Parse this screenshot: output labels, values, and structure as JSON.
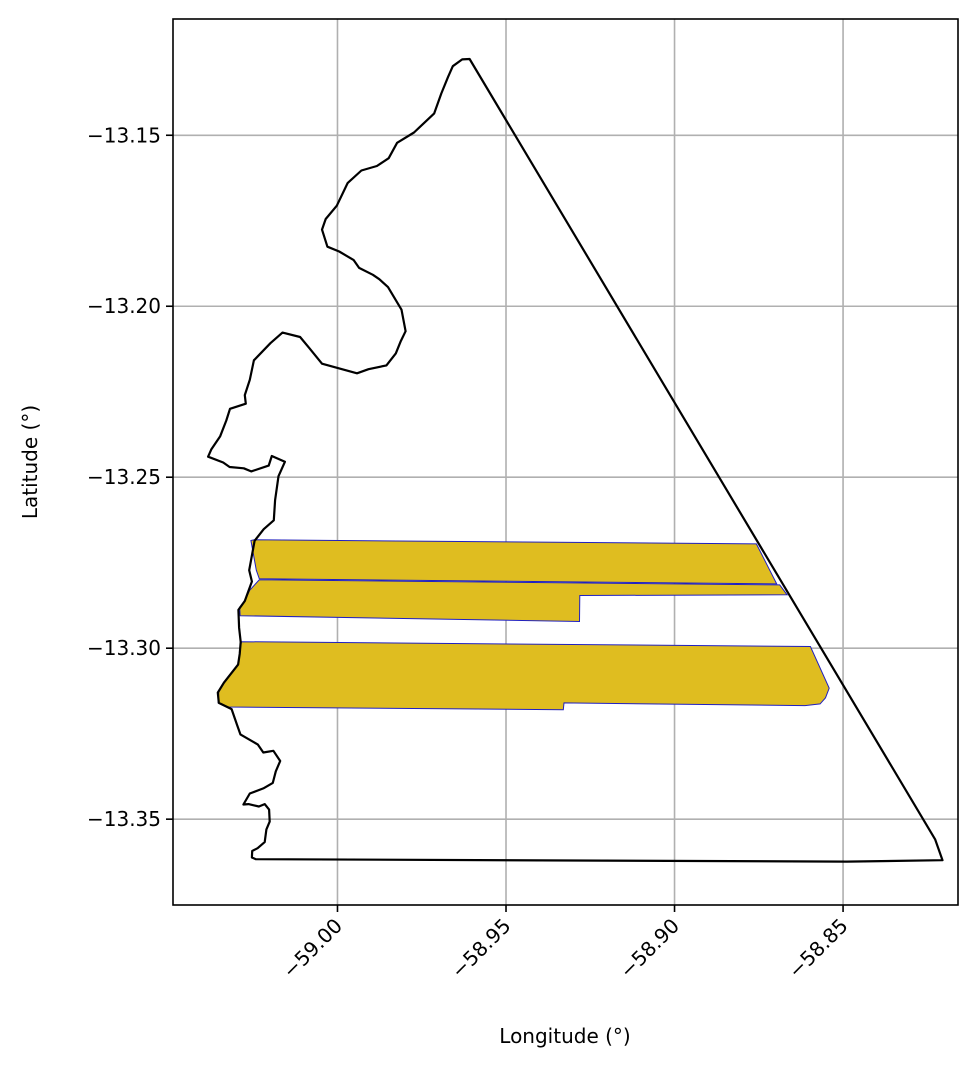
{
  "chart_data": {
    "type": "map",
    "xlabel": "Longitude (°)",
    "ylabel": "Latitude (°)",
    "xlim": [
      -59.0488,
      -58.8159
    ],
    "ylim": [
      -13.3751,
      -13.116
    ],
    "x_ticks": [
      -59.0,
      -58.95,
      -58.9,
      -58.85
    ],
    "x_tick_labels": [
      "−59.00",
      "−58.95",
      "−58.90",
      "−58.85"
    ],
    "y_ticks": [
      -13.15,
      -13.2,
      -13.25,
      -13.3,
      -13.35
    ],
    "y_tick_labels": [
      "−13.15",
      "−13.20",
      "−13.25",
      "−13.30",
      "−13.35"
    ],
    "grid": true,
    "colors": {
      "fill": "#dfbd20",
      "fill_edge": "#2020c0",
      "boundary": "#000000",
      "grid": "#b0b0b0"
    },
    "boundary": {
      "name": "",
      "coords": [
        [
          -58.9608,
          -13.1277
        ],
        [
          -58.8227,
          -13.3559
        ],
        [
          -58.8205,
          -13.362
        ],
        [
          -58.8489,
          -13.3624
        ],
        [
          -59.0242,
          -13.3617
        ],
        [
          -59.0254,
          -13.3612
        ],
        [
          -59.0253,
          -13.3593
        ],
        [
          -59.0237,
          -13.3585
        ],
        [
          -59.0216,
          -13.3567
        ],
        [
          -59.0211,
          -13.353
        ],
        [
          -59.0201,
          -13.3507
        ],
        [
          -59.0203,
          -13.3472
        ],
        [
          -59.0216,
          -13.3456
        ],
        [
          -59.0233,
          -13.3463
        ],
        [
          -59.0264,
          -13.3456
        ],
        [
          -59.0279,
          -13.3457
        ],
        [
          -59.026,
          -13.3425
        ],
        [
          -59.022,
          -13.341
        ],
        [
          -59.0192,
          -13.3394
        ],
        [
          -59.0183,
          -13.336
        ],
        [
          -59.017,
          -13.333
        ],
        [
          -59.019,
          -13.33
        ],
        [
          -59.022,
          -13.3305
        ],
        [
          -59.0236,
          -13.3282
        ],
        [
          -59.0288,
          -13.3252
        ],
        [
          -59.0298,
          -13.3224
        ],
        [
          -59.0314,
          -13.3178
        ],
        [
          -59.0352,
          -13.316
        ],
        [
          -59.0355,
          -13.313
        ],
        [
          -59.0337,
          -13.3101
        ],
        [
          -59.0295,
          -13.3048
        ],
        [
          -59.029,
          -13.3017
        ],
        [
          -59.0287,
          -13.2982
        ],
        [
          -59.0292,
          -13.294
        ],
        [
          -59.0294,
          -13.2888
        ],
        [
          -59.0275,
          -13.2862
        ],
        [
          -59.0254,
          -13.2805
        ],
        [
          -59.0262,
          -13.2772
        ],
        [
          -59.0246,
          -13.2686
        ],
        [
          -59.0219,
          -13.2652
        ],
        [
          -59.0189,
          -13.2626
        ],
        [
          -59.0185,
          -13.2567
        ],
        [
          -59.0175,
          -13.2497
        ],
        [
          -59.0156,
          -13.2455
        ],
        [
          -59.0195,
          -13.2438
        ],
        [
          -59.0204,
          -13.2466
        ],
        [
          -59.0256,
          -13.2483
        ],
        [
          -59.0278,
          -13.2474
        ],
        [
          -59.032,
          -13.247
        ],
        [
          -59.0339,
          -13.2457
        ],
        [
          -59.0384,
          -13.244
        ],
        [
          -59.0374,
          -13.2418
        ],
        [
          -59.0348,
          -13.238
        ],
        [
          -59.033,
          -13.2334
        ],
        [
          -59.0319,
          -13.23
        ],
        [
          -59.0272,
          -13.2285
        ],
        [
          -59.0275,
          -13.226
        ],
        [
          -59.026,
          -13.2215
        ],
        [
          -59.0248,
          -13.2158
        ],
        [
          -59.0199,
          -13.2108
        ],
        [
          -59.0163,
          -13.2077
        ],
        [
          -59.0111,
          -13.209
        ],
        [
          -59.0083,
          -13.2123
        ],
        [
          -59.0046,
          -13.2168
        ],
        [
          -58.9942,
          -13.2196
        ],
        [
          -58.9908,
          -13.2184
        ],
        [
          -58.9855,
          -13.2173
        ],
        [
          -58.9827,
          -13.2138
        ],
        [
          -58.9812,
          -13.2102
        ],
        [
          -58.9798,
          -13.2073
        ],
        [
          -58.981,
          -13.201
        ],
        [
          -58.985,
          -13.1944
        ],
        [
          -58.9876,
          -13.1921
        ],
        [
          -58.9895,
          -13.1908
        ],
        [
          -58.9936,
          -13.1888
        ],
        [
          -58.9952,
          -13.1865
        ],
        [
          -58.9995,
          -13.184
        ],
        [
          -59.003,
          -13.1826
        ],
        [
          -59.0046,
          -13.1776
        ],
        [
          -59.0035,
          -13.1745
        ],
        [
          -59.0002,
          -13.1706
        ],
        [
          -58.997,
          -13.164
        ],
        [
          -58.9929,
          -13.1603
        ],
        [
          -58.9883,
          -13.159
        ],
        [
          -58.9848,
          -13.1567
        ],
        [
          -58.9823,
          -13.1522
        ],
        [
          -58.9773,
          -13.1492
        ],
        [
          -58.9713,
          -13.1436
        ],
        [
          -58.9692,
          -13.1378
        ],
        [
          -58.9672,
          -13.133
        ],
        [
          -58.9658,
          -13.1298
        ],
        [
          -58.963,
          -13.1278
        ],
        [
          -58.9608,
          -13.1277
        ]
      ]
    },
    "fill_parcels": [
      {
        "name": "",
        "coords": [
          [
            -59.0247,
            -13.2683
          ],
          [
            -58.8757,
            -13.2695
          ],
          [
            -58.8697,
            -13.2812
          ],
          [
            -59.0232,
            -13.2797
          ],
          [
            -59.0241,
            -13.2772
          ],
          [
            -59.0257,
            -13.2685
          ]
        ]
      },
      {
        "name": "",
        "coords": [
          [
            -59.0232,
            -13.28
          ],
          [
            -58.8688,
            -13.2815
          ],
          [
            -58.8666,
            -13.2844
          ],
          [
            -58.9281,
            -13.2846
          ],
          [
            -58.9282,
            -13.2922
          ],
          [
            -59.0289,
            -13.2905
          ],
          [
            -59.029,
            -13.288
          ],
          [
            -59.0275,
            -13.2862
          ],
          [
            -59.026,
            -13.283
          ]
        ]
      },
      {
        "name": "",
        "coords": [
          [
            -59.0285,
            -13.2981
          ],
          [
            -58.8597,
            -13.2995
          ],
          [
            -58.8541,
            -13.3117
          ],
          [
            -58.8552,
            -13.3145
          ],
          [
            -58.8568,
            -13.3163
          ],
          [
            -58.8613,
            -13.3168
          ],
          [
            -58.9328,
            -13.316
          ],
          [
            -58.933,
            -13.318
          ],
          [
            -59.0323,
            -13.3172
          ],
          [
            -59.0354,
            -13.316
          ],
          [
            -59.0352,
            -13.3128
          ],
          [
            -59.0335,
            -13.31
          ],
          [
            -59.0296,
            -13.305
          ],
          [
            -59.029,
            -13.3015
          ]
        ]
      }
    ]
  }
}
